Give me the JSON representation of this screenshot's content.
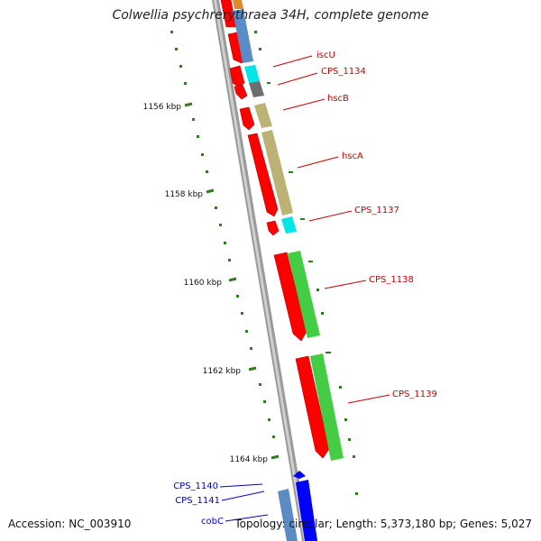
{
  "header": {
    "title": "Colwellia psychrerythraea 34H, complete genome"
  },
  "footer": {
    "accession": "Accession: NC_003910",
    "summary": "Topology: circular; Length: 5,373,180 bp; Genes: 5,027"
  },
  "colors": {
    "backbone": "#8c8c8c",
    "tick": "#2e7d1e",
    "forward_cds": "#ff0000",
    "reverse_cds": "#0000ff",
    "label_red": "#cc0000",
    "label_blue": "#0000cc"
  },
  "scale_labels": [
    "1156 kbp",
    "1158 kbp",
    "1160 kbp",
    "1162 kbp",
    "1164 kbp"
  ],
  "gene_labels": [
    {
      "text": "iscU",
      "color": "red"
    },
    {
      "text": "CPS_1134",
      "color": "red"
    },
    {
      "text": "hscB",
      "color": "red"
    },
    {
      "text": "hscA",
      "color": "red"
    },
    {
      "text": "CPS_1137",
      "color": "red"
    },
    {
      "text": "CPS_1138",
      "color": "red"
    },
    {
      "text": "CPS_1139",
      "color": "red"
    },
    {
      "text": "CPS_1140",
      "color": "blue"
    },
    {
      "text": "CPS_1141",
      "color": "blue"
    },
    {
      "text": "cobC",
      "color": "blue"
    }
  ]
}
